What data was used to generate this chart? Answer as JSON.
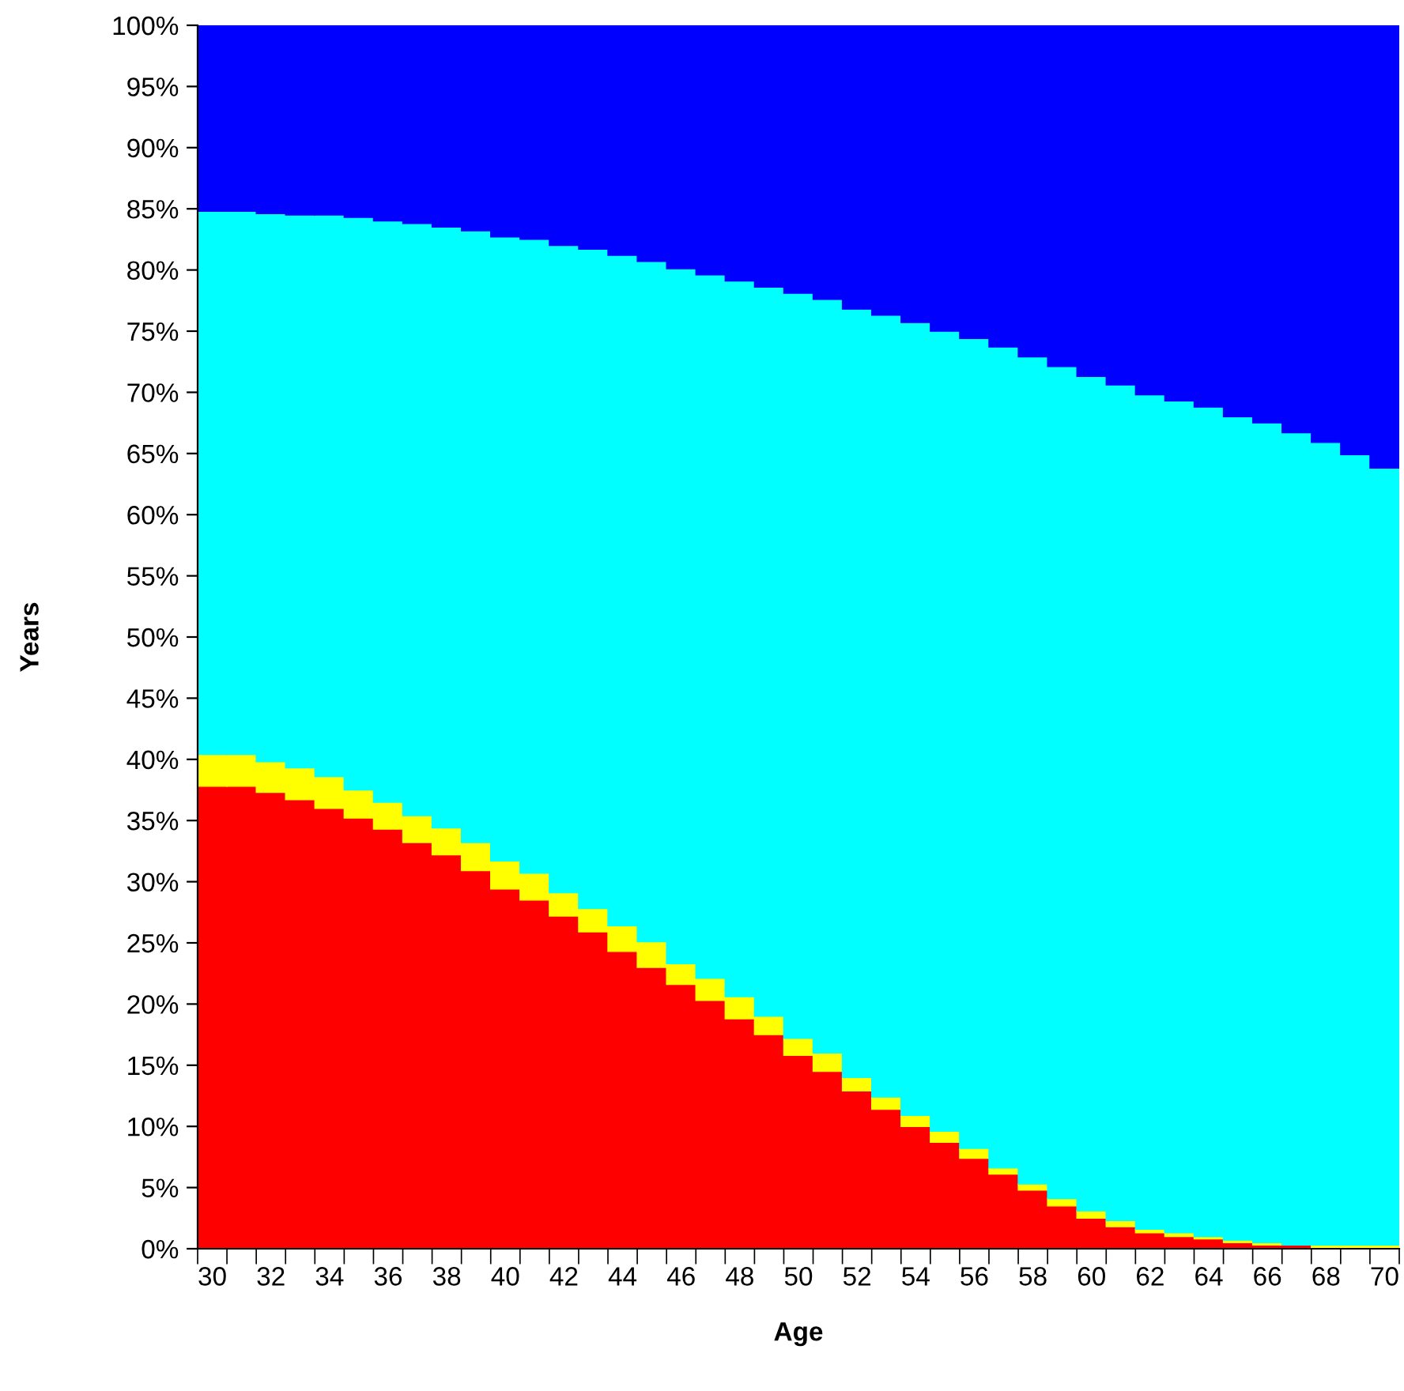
{
  "chart_data": {
    "type": "bar",
    "stacked": true,
    "xlabel": "Age",
    "ylabel": "Years",
    "categories": [
      "30",
      null,
      "32",
      null,
      "34",
      null,
      "36",
      null,
      "38",
      null,
      "40",
      null,
      "42",
      null,
      "44",
      null,
      "46",
      null,
      "48",
      null,
      "50",
      null,
      "52",
      null,
      "54",
      null,
      "56",
      null,
      "58",
      null,
      "60",
      null,
      "62",
      null,
      "64",
      null,
      "66",
      null,
      "68",
      null,
      "70"
    ],
    "series": [
      {
        "color": "#ff0000",
        "values": [
          37.8,
          37.8,
          37.3,
          36.7,
          36.0,
          35.2,
          34.3,
          33.2,
          32.2,
          30.9,
          29.4,
          28.5,
          27.2,
          25.9,
          24.3,
          23.0,
          21.6,
          20.3,
          18.8,
          17.5,
          15.8,
          14.5,
          12.9,
          11.4,
          10.0,
          8.7,
          7.4,
          6.1,
          4.8,
          3.5,
          2.5,
          1.8,
          1.3,
          1.0,
          0.8,
          0.5,
          0.3,
          0.3,
          0,
          0,
          0
        ]
      },
      {
        "color": "#ffff00",
        "values": [
          2.6,
          2.6,
          2.5,
          2.6,
          2.6,
          2.3,
          2.2,
          2.2,
          2.2,
          2.3,
          2.3,
          2.2,
          1.9,
          1.9,
          2.1,
          2.1,
          1.7,
          1.8,
          1.8,
          1.5,
          1.4,
          1.5,
          1.1,
          1.0,
          0.9,
          0.9,
          0.8,
          0.5,
          0.5,
          0.6,
          0.6,
          0.5,
          0.3,
          0.3,
          0.2,
          0.2,
          0.2,
          0,
          0.3,
          0.3,
          0.3
        ]
      },
      {
        "color": "#00ffff",
        "values": [
          44.4,
          44.4,
          44.8,
          45.2,
          45.9,
          46.8,
          47.5,
          48.4,
          49.1,
          50.0,
          51.0,
          51.8,
          52.9,
          53.9,
          54.8,
          55.6,
          56.8,
          57.5,
          58.5,
          59.6,
          60.9,
          61.6,
          62.8,
          63.9,
          64.8,
          65.4,
          66.2,
          67.1,
          67.6,
          68.0,
          68.2,
          68.3,
          68.2,
          68.0,
          67.8,
          67.3,
          67.0,
          66.4,
          65.6,
          64.6,
          63.5
        ]
      },
      {
        "color": "#0000ff",
        "values": [
          15.2,
          15.2,
          15.4,
          15.5,
          15.5,
          15.7,
          16.0,
          16.2,
          16.5,
          16.8,
          17.3,
          17.5,
          18.0,
          18.3,
          18.8,
          19.3,
          19.9,
          20.4,
          20.9,
          21.4,
          21.9,
          22.4,
          23.2,
          23.7,
          24.3,
          25.0,
          25.6,
          26.3,
          27.1,
          27.9,
          28.7,
          29.4,
          30.2,
          30.7,
          31.2,
          32.0,
          32.5,
          33.3,
          34.1,
          35.1,
          36.2
        ]
      }
    ],
    "ylim": [
      0,
      100
    ],
    "yticks": [
      {
        "value": 0,
        "label": "0%"
      },
      {
        "value": 5,
        "label": "5%"
      },
      {
        "value": 10,
        "label": "10%"
      },
      {
        "value": 15,
        "label": "15%"
      },
      {
        "value": 20,
        "label": "20%"
      },
      {
        "value": 25,
        "label": "25%"
      },
      {
        "value": 30,
        "label": "30%"
      },
      {
        "value": 35,
        "label": "35%"
      },
      {
        "value": 40,
        "label": "40%"
      },
      {
        "value": 45,
        "label": "45%"
      },
      {
        "value": 50,
        "label": "50%"
      },
      {
        "value": 55,
        "label": "55%"
      },
      {
        "value": 60,
        "label": "60%"
      },
      {
        "value": 65,
        "label": "65%"
      },
      {
        "value": 70,
        "label": "70%"
      },
      {
        "value": 75,
        "label": "75%"
      },
      {
        "value": 80,
        "label": "80%"
      },
      {
        "value": 85,
        "label": "85%"
      },
      {
        "value": 90,
        "label": "90%"
      },
      {
        "value": 95,
        "label": "95%"
      },
      {
        "value": 100,
        "label": "100%"
      }
    ],
    "grid": false
  }
}
